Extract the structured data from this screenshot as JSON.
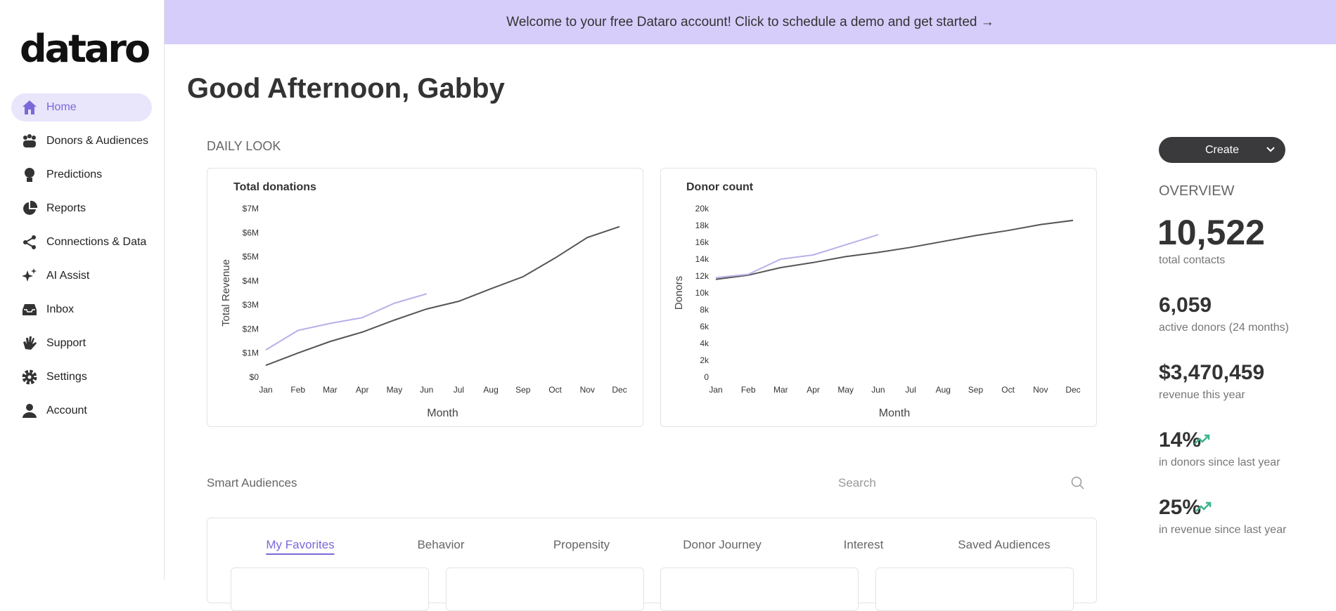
{
  "brand": "dataro",
  "nav": [
    "Home",
    "Donors & Audiences",
    "Predictions",
    "Reports",
    "Connections & Data",
    "AI Assist",
    "Inbox",
    "Support",
    "Settings",
    "Account"
  ],
  "banner": "Welcome to your free Dataro account! Click to schedule a demo and get started →",
  "greeting": "Good Afternoon, Gabby",
  "section_title": "DAILY LOOK",
  "chart_data": [
    {
      "type": "line",
      "title": "Total donations",
      "x_label": "Month",
      "y_label": "Total Revenue",
      "categories": [
        "Jan",
        "Feb",
        "Mar",
        "Apr",
        "May",
        "Jun",
        "Jul",
        "Aug",
        "Sep",
        "Oct",
        "Nov",
        "Dec"
      ],
      "series": [
        {
          "color": "#555555",
          "values": [
            490000,
            1000000,
            1480000,
            1870000,
            2370000,
            2830000,
            3150000,
            3670000,
            4170000,
            4950000,
            5800000,
            6250000
          ]
        },
        {
          "color": "#b9b0e8",
          "values": [
            1130000,
            1940000,
            2230000,
            2470000,
            3070000,
            3460000,
            null,
            null,
            null,
            null,
            null,
            null
          ]
        }
      ],
      "ylim": [
        0,
        7000000
      ],
      "yticks": [
        {
          "value": 0,
          "label": "$0"
        },
        {
          "value": 1000000,
          "label": "$1M"
        },
        {
          "value": 2000000,
          "label": "$2M"
        },
        {
          "value": 3000000,
          "label": "$3M"
        },
        {
          "value": 4000000,
          "label": "$4M"
        },
        {
          "value": 5000000,
          "label": "$5M"
        },
        {
          "value": 6000000,
          "label": "$6M"
        },
        {
          "value": 7000000,
          "label": "$7M"
        }
      ]
    },
    {
      "type": "line",
      "title": "Donor count",
      "x_label": "Month",
      "y_label": "Donors",
      "categories": [
        "Jan",
        "Feb",
        "Mar",
        "Apr",
        "May",
        "Jun",
        "Jul",
        "Aug",
        "Sep",
        "Oct",
        "Nov",
        "Dec"
      ],
      "series": [
        {
          "color": "#555555",
          "values": [
            11600,
            12100,
            13000,
            13600,
            14300,
            14800,
            15400,
            16100,
            16800,
            17400,
            18100,
            18600
          ]
        },
        {
          "color": "#b9b0e8",
          "values": [
            11800,
            12200,
            14000,
            14500,
            15700,
            16900,
            null,
            null,
            null,
            null,
            null,
            null
          ]
        }
      ],
      "ylim": [
        0,
        20000
      ],
      "yticks": [
        0,
        {
          "value": 2000,
          "label": "2k"
        },
        {
          "value": 4000,
          "label": "4k"
        },
        {
          "value": 6000,
          "label": "6k"
        },
        {
          "value": 8000,
          "label": "8k"
        },
        {
          "value": 10000,
          "label": "10k"
        },
        {
          "value": 12000,
          "label": "12k"
        },
        {
          "value": 14000,
          "label": "14k"
        },
        {
          "value": 16000,
          "label": "16k"
        },
        {
          "value": 18000,
          "label": "18k"
        },
        {
          "value": 20000,
          "label": "20k"
        }
      ]
    }
  ],
  "create_button": "Create",
  "overview": {
    "title": "OVERVIEW",
    "stats": [
      {
        "value": "10,522",
        "label": "total contacts"
      },
      {
        "value": "6,059",
        "label": "active donors (24 months)"
      },
      {
        "value": "$3,470,459",
        "label": "revenue this year"
      },
      {
        "value": "14%",
        "label": "in donors since last year"
      },
      {
        "value": "25%",
        "label": "in revenue since last year"
      }
    ]
  },
  "smart_audiences": {
    "title": "Smart Audiences",
    "search_placeholder": "Search",
    "tabs": [
      "My Favorites",
      "Behavior",
      "Propensity",
      "Donor Journey",
      "Interest",
      "Saved Audiences"
    ]
  }
}
